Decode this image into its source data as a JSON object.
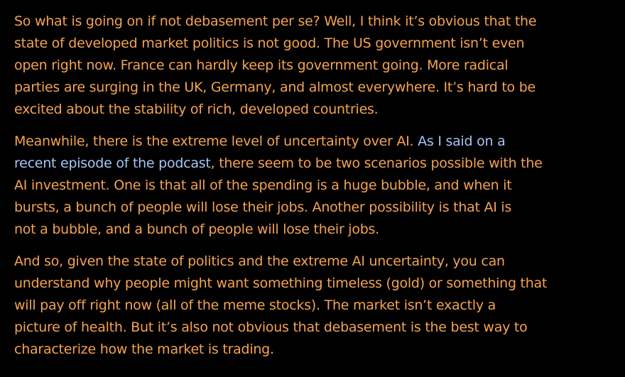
{
  "paragraphs": [
    {
      "lines": [
        [
          {
            "text": "So what is going on if not debasement per se? Well, I think it’s obvious that the"
          }
        ],
        [
          {
            "text": "state of developed market politics is not good. The US government isn’t even"
          }
        ],
        [
          {
            "text": "open right now. France can hardly keep its government going. More radical"
          }
        ],
        [
          {
            "text": "parties are surging in the UK, Germany, and almost everywhere. It’s hard to be"
          }
        ],
        [
          {
            "text": "excited about the stability of rich, developed countries."
          }
        ]
      ]
    },
    {
      "lines": [
        [
          {
            "text": "Meanwhile, there is the extreme level of uncertainty over AI. "
          },
          {
            "text": "As I said on a",
            "link": true
          }
        ],
        [
          {
            "text": "recent episode of the podcast",
            "link": true
          },
          {
            "text": ", there seem to be two scenarios possible with the"
          }
        ],
        [
          {
            "text": "AI investment. One is that all of the spending is a huge bubble, and when it"
          }
        ],
        [
          {
            "text": "bursts, a bunch of people will lose their jobs. Another possibility is that AI is"
          }
        ],
        [
          {
            "text": "not a bubble, and a bunch of people will lose their jobs."
          }
        ]
      ]
    },
    {
      "lines": [
        [
          {
            "text": "And so, given the state of politics and the extreme AI uncertainty, you can"
          }
        ],
        [
          {
            "text": "understand why people might want something timeless (gold) or something that"
          }
        ],
        [
          {
            "text": "will pay off right now (all of the meme stocks). The market isn’t exactly a"
          }
        ],
        [
          {
            "text": "picture of health. But it’s also not obvious that debasement is the best way to"
          }
        ],
        [
          {
            "text": "characterize how the market is trading."
          }
        ]
      ]
    }
  ]
}
